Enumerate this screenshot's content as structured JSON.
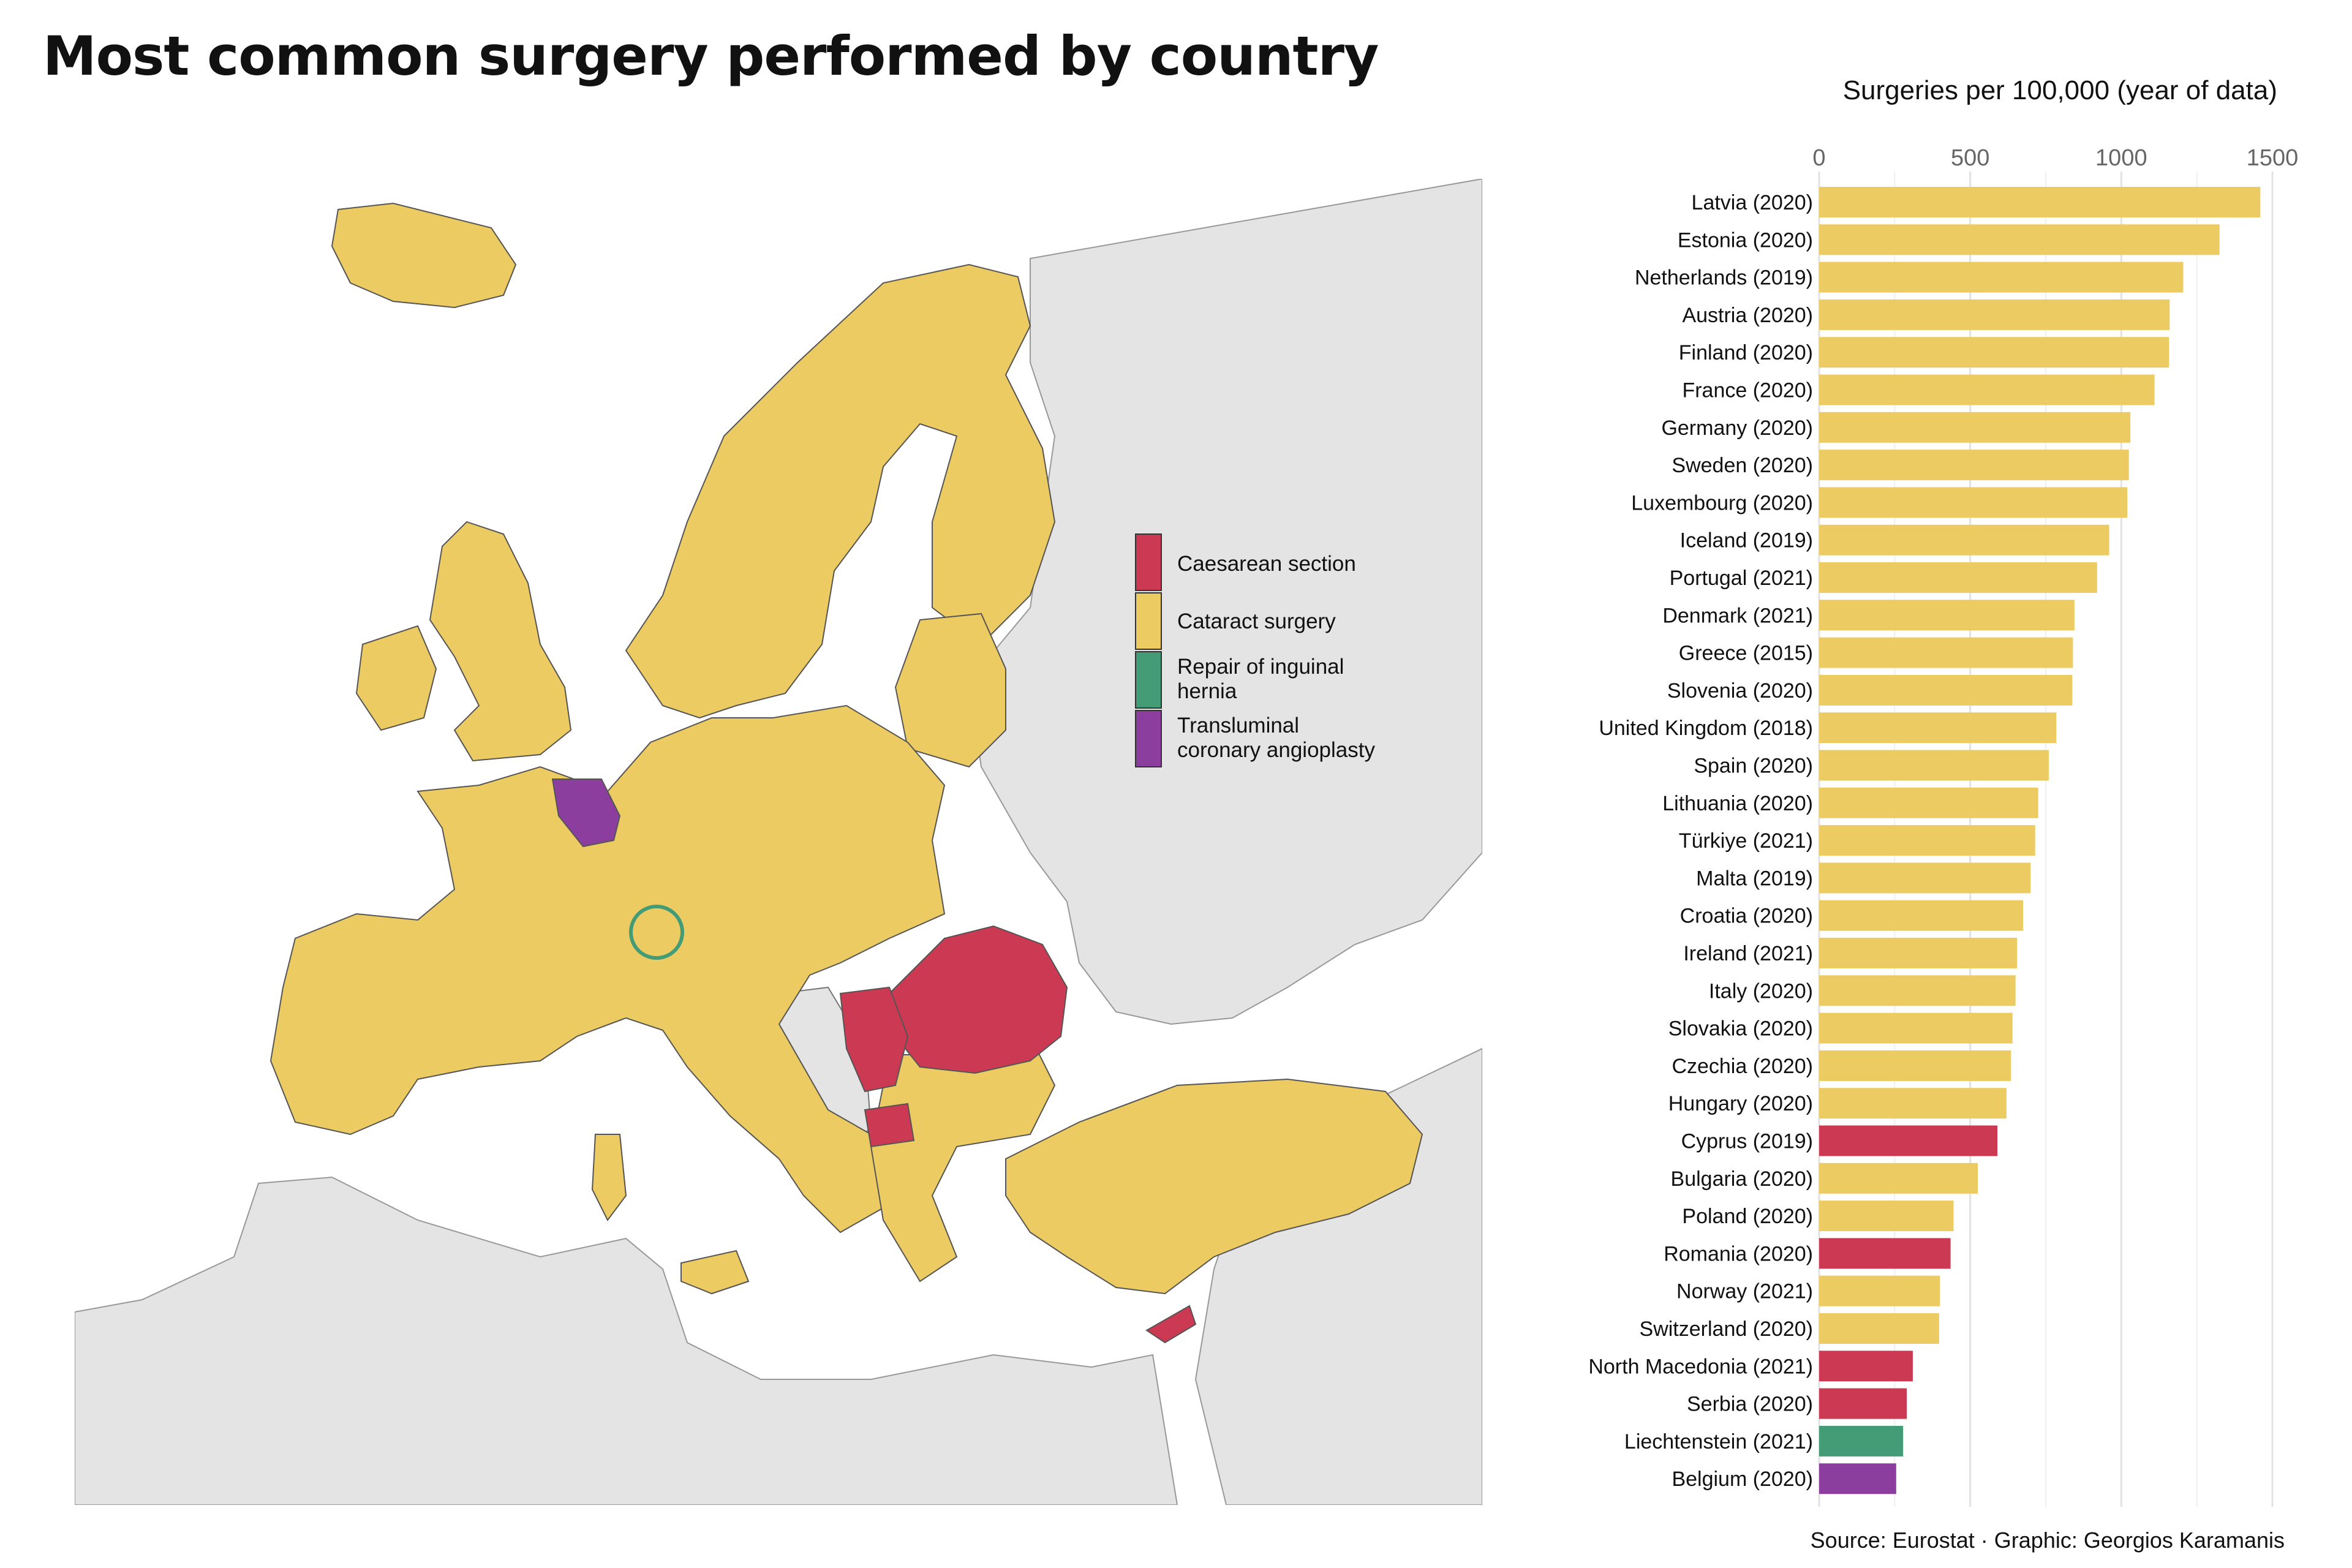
{
  "title": "Most common surgery performed by country",
  "source": "Source: Eurostat · Graphic: Georgios Karamanis",
  "colors": {
    "caesarean": "#CB3A52",
    "cataract": "#ECCC62",
    "hernia": "#449C77",
    "angioplasty": "#8C3E9E",
    "sea": "#FFFFFF",
    "land_other": "#E4E4E4"
  },
  "map": {
    "legend": [
      {
        "label": "Caesarean section",
        "color": "#CB3A52"
      },
      {
        "label": "Cataract surgery",
        "color": "#ECCC62"
      },
      {
        "label": "Repair of inguinal hernia",
        "color": "#449C77"
      },
      {
        "label": "Transluminal coronary angioplasty",
        "color": "#8C3E9E"
      }
    ]
  },
  "chart_data": {
    "type": "bar",
    "orientation": "horizontal",
    "title": "",
    "xlabel": "Surgeries per 100,000 (year of data)",
    "xlim": [
      0,
      1500
    ],
    "xticks": [
      0,
      500,
      1000,
      1500
    ],
    "grid": true,
    "categories": [
      "Latvia (2020)",
      "Estonia (2020)",
      "Netherlands (2019)",
      "Austria (2020)",
      "Finland (2020)",
      "France (2020)",
      "Germany (2020)",
      "Sweden (2020)",
      "Luxembourg (2020)",
      "Iceland (2019)",
      "Portugal (2021)",
      "Denmark (2021)",
      "Greece (2015)",
      "Slovenia (2020)",
      "United Kingdom (2018)",
      "Spain (2020)",
      "Lithuania (2020)",
      "Türkiye (2021)",
      "Malta (2019)",
      "Croatia (2020)",
      "Ireland (2021)",
      "Italy (2020)",
      "Slovakia (2020)",
      "Czechia (2020)",
      "Hungary (2020)",
      "Cyprus (2019)",
      "Bulgaria (2020)",
      "Poland (2020)",
      "Romania (2020)",
      "Norway (2021)",
      "Switzerland (2020)",
      "North Macedonia (2021)",
      "Serbia (2020)",
      "Liechtenstein (2021)",
      "Belgium (2020)"
    ],
    "values": [
      1460,
      1325,
      1205,
      1160,
      1158,
      1110,
      1030,
      1025,
      1020,
      960,
      920,
      845,
      840,
      838,
      785,
      760,
      725,
      715,
      700,
      675,
      655,
      650,
      640,
      635,
      620,
      590,
      525,
      445,
      435,
      400,
      397,
      310,
      290,
      278,
      255
    ],
    "surgery": [
      "Cataract surgery",
      "Cataract surgery",
      "Cataract surgery",
      "Cataract surgery",
      "Cataract surgery",
      "Cataract surgery",
      "Cataract surgery",
      "Cataract surgery",
      "Cataract surgery",
      "Cataract surgery",
      "Cataract surgery",
      "Cataract surgery",
      "Cataract surgery",
      "Cataract surgery",
      "Cataract surgery",
      "Cataract surgery",
      "Cataract surgery",
      "Cataract surgery",
      "Cataract surgery",
      "Cataract surgery",
      "Cataract surgery",
      "Cataract surgery",
      "Cataract surgery",
      "Cataract surgery",
      "Cataract surgery",
      "Caesarean section",
      "Cataract surgery",
      "Cataract surgery",
      "Caesarean section",
      "Cataract surgery",
      "Cataract surgery",
      "Caesarean section",
      "Caesarean section",
      "Repair of inguinal hernia",
      "Transluminal coronary angioplasty"
    ]
  }
}
